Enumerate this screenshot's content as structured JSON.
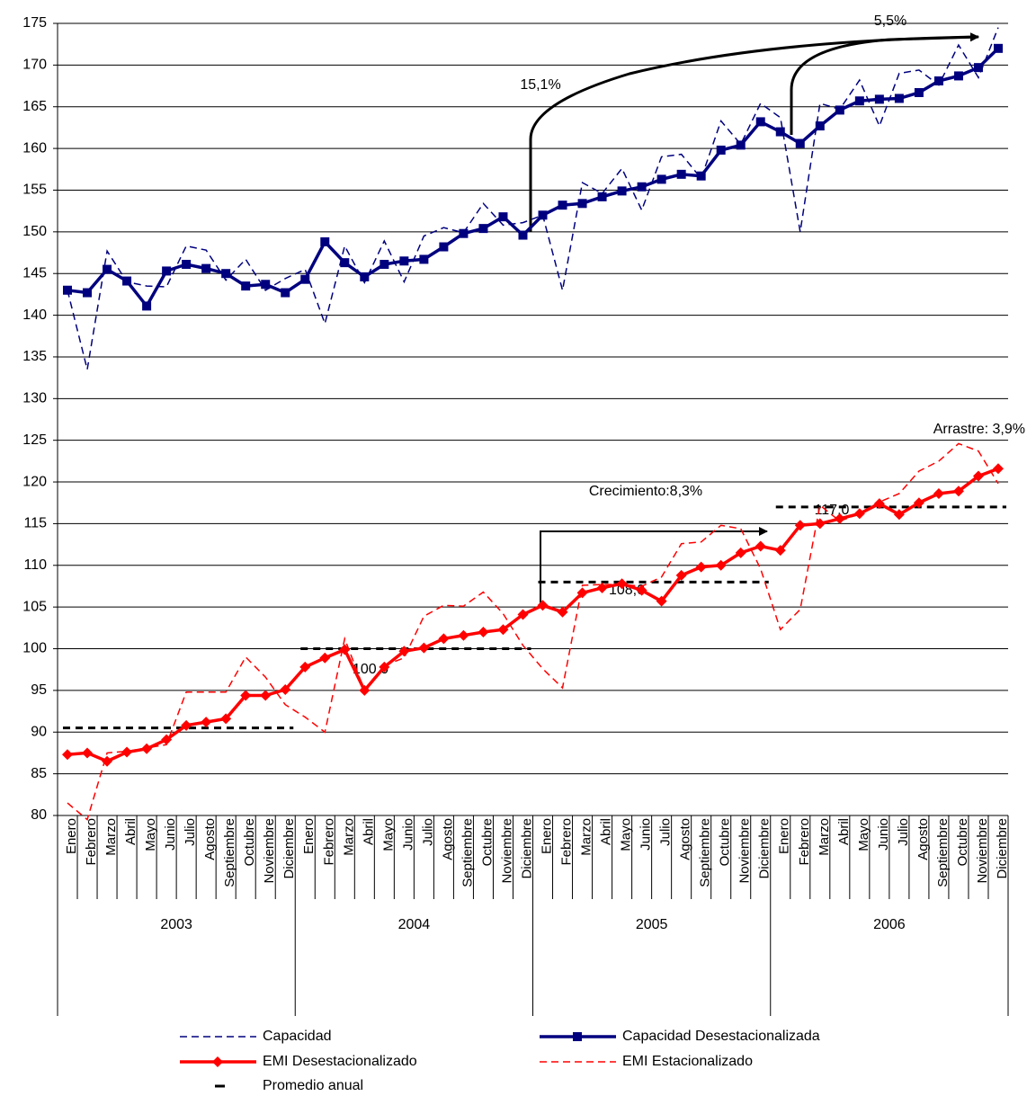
{
  "chart_data": {
    "type": "line",
    "categories": [
      "Enero",
      "Febrero",
      "Marzo",
      "Abril",
      "Mayo",
      "Junio",
      "Julio",
      "Agosto",
      "Septiembre",
      "Octubre",
      "Noviembre",
      "Diciembre",
      "Enero",
      "Febrero",
      "Marzo",
      "Abril",
      "Mayo",
      "Junio",
      "Julio",
      "Agosto",
      "Septiembre",
      "Octubre",
      "Noviembre",
      "Diciembre",
      "Enero",
      "Febrero",
      "Marzo",
      "Abril",
      "Mayo",
      "Junio",
      "Julio",
      "Agosto",
      "Septiembre",
      "Octubre",
      "Noviembre",
      "Diciembre",
      "Enero",
      "Febrero",
      "Marzo",
      "Abril",
      "Mayo",
      "Junio",
      "Julio",
      "Agosto",
      "Septiembre",
      "Octubre",
      "Noviembre",
      "Diciembre"
    ],
    "years": [
      "2003",
      "2004",
      "2005",
      "2006"
    ],
    "ylim": [
      80,
      175
    ],
    "yticks": [
      80,
      85,
      90,
      95,
      100,
      105,
      110,
      115,
      120,
      125,
      130,
      135,
      140,
      145,
      150,
      155,
      160,
      165,
      170,
      175
    ],
    "grid": true,
    "series": [
      {
        "name": "Capacidad",
        "color": "#00007f",
        "dashed": true,
        "marker": null,
        "values": [
          143.0,
          133.5,
          147.7,
          144.0,
          143.5,
          143.4,
          148.3,
          147.8,
          144.2,
          146.7,
          143.0,
          144.4,
          145.5,
          139.0,
          148.3,
          143.9,
          148.9,
          144.0,
          149.5,
          150.5,
          149.9,
          153.4,
          150.8,
          151.1,
          152.0,
          143.0,
          155.9,
          154.6,
          157.6,
          152.6,
          159.0,
          159.3,
          156.4,
          163.3,
          160.5,
          165.4,
          163.7,
          150.0,
          165.4,
          164.7,
          168.2,
          162.7,
          169.0,
          169.4,
          167.6,
          172.4,
          168.5,
          174.5
        ]
      },
      {
        "name": "Capacidad Desestacionalizada",
        "color": "#00007f",
        "dashed": false,
        "marker": "square",
        "values": [
          143.0,
          142.7,
          145.5,
          144.1,
          141.1,
          145.3,
          146.1,
          145.6,
          145.0,
          143.5,
          143.7,
          142.7,
          144.3,
          148.8,
          146.3,
          144.6,
          146.1,
          146.5,
          146.7,
          148.2,
          149.8,
          150.4,
          151.8,
          149.6,
          152.0,
          153.2,
          153.4,
          154.2,
          154.9,
          155.4,
          156.3,
          156.9,
          156.7,
          159.8,
          160.4,
          163.2,
          162.0,
          160.6,
          162.7,
          164.6,
          165.7,
          165.9,
          166.0,
          166.7,
          168.1,
          168.7,
          169.7,
          172.0
        ]
      },
      {
        "name": "EMI Desestacionalizado",
        "color": "#ff0000",
        "dashed": false,
        "marker": "diamond",
        "values": [
          87.3,
          87.5,
          86.5,
          87.6,
          88.0,
          89.1,
          90.8,
          91.2,
          91.6,
          94.4,
          94.4,
          95.1,
          97.8,
          98.9,
          99.9,
          95.0,
          97.8,
          99.7,
          100.1,
          101.2,
          101.6,
          102.0,
          102.3,
          104.1,
          105.2,
          104.4,
          106.7,
          107.3,
          107.8,
          107.0,
          105.7,
          108.8,
          109.8,
          110.0,
          111.5,
          112.3,
          111.8,
          114.8,
          115.0,
          115.6,
          116.2,
          117.4,
          116.1,
          117.5,
          118.6,
          118.9,
          120.7,
          121.6
        ]
      },
      {
        "name": "EMI Estacionalizado",
        "color": "#ff0000",
        "dashed": true,
        "marker": null,
        "values": [
          81.5,
          79.5,
          87.5,
          87.7,
          88.1,
          88.5,
          94.8,
          94.8,
          94.8,
          99.0,
          96.6,
          93.3,
          91.8,
          90.0,
          101.2,
          95.0,
          98.0,
          98.9,
          103.9,
          105.2,
          105.1,
          106.8,
          104.2,
          100.4,
          97.6,
          95.3,
          107.6,
          107.7,
          107.7,
          107.5,
          108.6,
          112.6,
          112.8,
          114.8,
          114.4,
          109.6,
          102.3,
          104.7,
          117.2,
          115.3,
          116.2,
          117.6,
          118.6,
          121.3,
          122.5,
          124.6,
          123.7,
          119.8
        ]
      }
    ],
    "annual_average": {
      "name": "Promedio anual",
      "color": "#000000",
      "values": [
        90.5,
        100.0,
        108.0,
        117.0
      ],
      "value_labels": [
        null,
        "100,0",
        "108,0",
        "117,0"
      ]
    },
    "annotations": [
      "15,1%",
      "5,5%",
      "Crecimiento:8,3%",
      "Arrastre: 3,9%"
    ]
  }
}
